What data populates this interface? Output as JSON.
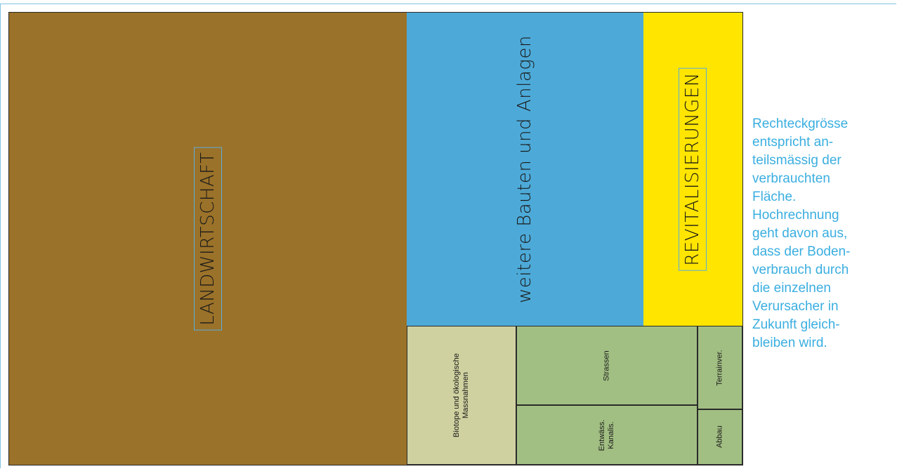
{
  "chart_data": {
    "type": "treemap",
    "title": "",
    "colors": {
      "landwirtschaft": "#9b7229",
      "weitere_bauten": "#4daad8",
      "revitalisierungen": "#ffe500",
      "biotope": "#cfd1a0",
      "green": "#a2bf83",
      "border": "#2a2a2a",
      "label_box": "#5aaee0",
      "note_text": "#3aaee0"
    },
    "cells": [
      {
        "id": "landwirtschaft",
        "label": "LANDWIRTSCHAFT",
        "share": 0.5422,
        "color": "#9b7229"
      },
      {
        "id": "weitere_bauten",
        "label": "weitere Bauten und Anlagen",
        "share": 0.2236,
        "color": "#4daad8"
      },
      {
        "id": "revitalisierungen",
        "label": "REVITALISIERUNGEN",
        "share": 0.0937,
        "color": "#ffe500"
      },
      {
        "id": "biotope",
        "label": "Biotope und ökologische\nMassnahmen",
        "share": 0.0459,
        "color": "#cfd1a0"
      },
      {
        "id": "strassen",
        "label": "Strassen",
        "share": 0.0434,
        "color": "#a2bf83"
      },
      {
        "id": "entwaess",
        "label": "Entwäss.\nKanalis.",
        "share": 0.0325,
        "color": "#a2bf83"
      },
      {
        "id": "terrainver",
        "label": "Terrainver.",
        "share": 0.0105,
        "color": "#a2bf83"
      },
      {
        "id": "abbau",
        "label": "Abbau",
        "share": 0.007,
        "color": "#a2bf83"
      }
    ]
  },
  "note": {
    "text": "Rechteckgrösse\nentspricht an-\nteilsmässig der\nverbrauchten\nFläche.\nHochrechnung\ngeht davon aus,\ndass der Boden-\nverbrauch durch\ndie einzelnen\nVerursacher in\nZukunft gleich-\nbleiben wird."
  }
}
